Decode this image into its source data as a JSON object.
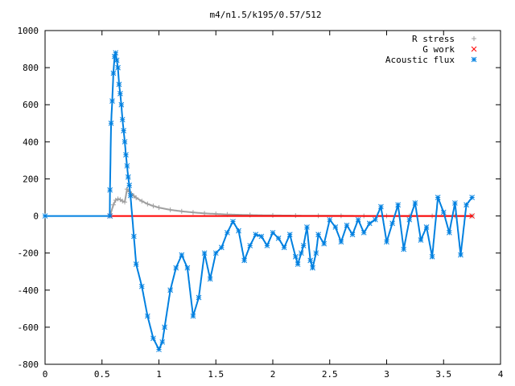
{
  "chart_data": {
    "type": "scatter",
    "title": "m4/n1.5/k195/0.57/512",
    "xlabel": "",
    "ylabel": "",
    "xlim": [
      0,
      4
    ],
    "ylim": [
      -800,
      1000
    ],
    "xticks": [
      0,
      0.5,
      1,
      1.5,
      2,
      2.5,
      3,
      3.5,
      4
    ],
    "xtick_labels": [
      "0",
      "0.5",
      "1",
      "1.5",
      "2",
      "2.5",
      "3",
      "3.5",
      "4"
    ],
    "yticks": [
      -800,
      -600,
      -400,
      -200,
      0,
      200,
      400,
      600,
      800,
      1000
    ],
    "ytick_labels": [
      "-800",
      "-600",
      "-400",
      "-200",
      "0",
      "200",
      "400",
      "600",
      "800",
      "1000"
    ],
    "grid": false,
    "legend_position": "top-right",
    "series": [
      {
        "name": "R stress",
        "marker": "+",
        "color": "#a0a0a0",
        "x": [
          0.57,
          0.6,
          0.62,
          0.64,
          0.66,
          0.68,
          0.7,
          0.72,
          0.74,
          0.76,
          0.78,
          0.8,
          0.85,
          0.9,
          0.95,
          1.0,
          1.1,
          1.2,
          1.3,
          1.4,
          1.5,
          1.6,
          1.8,
          2.0,
          2.2,
          2.4,
          2.6,
          2.8,
          3.0,
          3.2,
          3.4,
          3.6,
          3.75
        ],
        "y": [
          0,
          60,
          85,
          92,
          88,
          80,
          75,
          145,
          130,
          118,
          108,
          98,
          80,
          65,
          54,
          45,
          33,
          25,
          19,
          14,
          11,
          8,
          5,
          3,
          2,
          1,
          1,
          0,
          0,
          0,
          0,
          0,
          0
        ]
      },
      {
        "name": "G work",
        "marker": "x",
        "color": "#ff0000",
        "x": [
          0.57,
          3.75
        ],
        "y": [
          0,
          0
        ]
      },
      {
        "name": "Acoustic flux",
        "marker": "*",
        "color": "#0080e0",
        "x": [
          0,
          0.57,
          0.57,
          0.58,
          0.59,
          0.6,
          0.61,
          0.62,
          0.63,
          0.64,
          0.65,
          0.66,
          0.67,
          0.68,
          0.69,
          0.7,
          0.71,
          0.72,
          0.73,
          0.74,
          0.75,
          0.78,
          0.8,
          0.85,
          0.9,
          0.95,
          1.0,
          1.03,
          1.05,
          1.1,
          1.15,
          1.2,
          1.25,
          1.3,
          1.35,
          1.4,
          1.45,
          1.5,
          1.55,
          1.6,
          1.65,
          1.7,
          1.75,
          1.8,
          1.85,
          1.9,
          1.95,
          2.0,
          2.05,
          2.1,
          2.15,
          2.2,
          2.22,
          2.25,
          2.27,
          2.3,
          2.33,
          2.35,
          2.38,
          2.4,
          2.45,
          2.5,
          2.55,
          2.6,
          2.65,
          2.7,
          2.75,
          2.8,
          2.85,
          2.9,
          2.95,
          3.0,
          3.05,
          3.1,
          3.15,
          3.2,
          3.25,
          3.3,
          3.35,
          3.4,
          3.45,
          3.5,
          3.55,
          3.6,
          3.65,
          3.7,
          3.75
        ],
        "y": [
          0,
          0,
          140,
          500,
          620,
          770,
          860,
          880,
          840,
          800,
          710,
          660,
          600,
          520,
          460,
          400,
          330,
          270,
          210,
          165,
          110,
          -110,
          -260,
          -380,
          -540,
          -660,
          -720,
          -680,
          -600,
          -400,
          -280,
          -210,
          -280,
          -540,
          -440,
          -200,
          -340,
          -200,
          -170,
          -90,
          -30,
          -80,
          -240,
          -160,
          -100,
          -110,
          -160,
          -90,
          -120,
          -170,
          -100,
          -220,
          -260,
          -200,
          -160,
          -60,
          -240,
          -280,
          -200,
          -100,
          -150,
          -20,
          -60,
          -140,
          -50,
          -100,
          -20,
          -90,
          -40,
          -20,
          50,
          -140,
          -40,
          60,
          -180,
          -20,
          70,
          -130,
          -60,
          -220,
          100,
          20,
          -90,
          70,
          -210,
          60,
          100
        ]
      }
    ]
  }
}
